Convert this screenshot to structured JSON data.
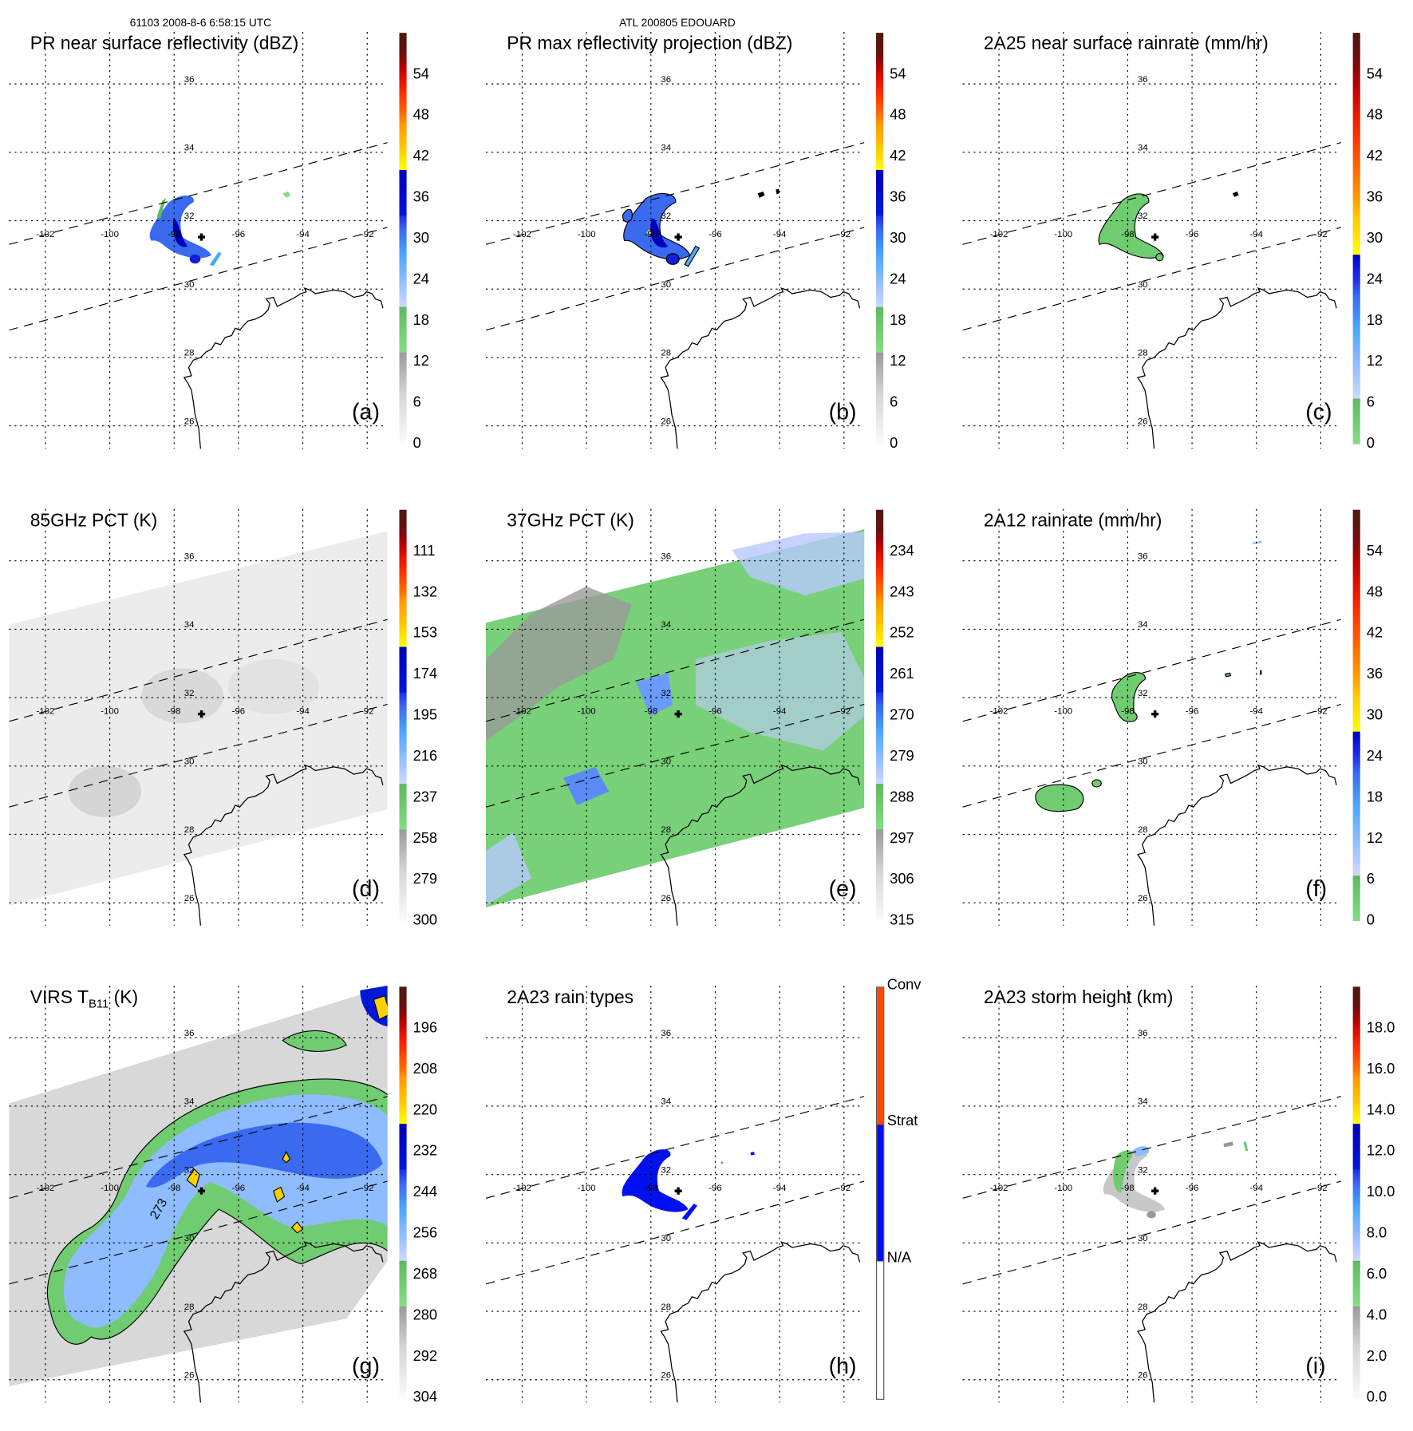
{
  "header": {
    "orbit_time": "61103 2008-8-6 6:58:15 UTC",
    "storm": "ATL 200805 EDOUARD"
  },
  "grid": {
    "lat_labels": [
      "36",
      "34",
      "32",
      "30",
      "28",
      "26"
    ],
    "lon_labels": [
      "-102",
      "-100",
      "-98",
      "-96",
      "-94",
      "-92"
    ]
  },
  "panels": [
    {
      "id": "a",
      "title": "PR near surface reflectivity (dBZ)",
      "letter": "(a)",
      "colorbar": "std",
      "colorbar_labels": [
        "0",
        "6",
        "12",
        "18",
        "24",
        "30",
        "36",
        "42",
        "48",
        "54"
      ]
    },
    {
      "id": "b",
      "title": "PR max reflectivity projection (dBZ)",
      "letter": "(b)",
      "colorbar": "std",
      "colorbar_labels": [
        "0",
        "6",
        "12",
        "18",
        "24",
        "30",
        "36",
        "42",
        "48",
        "54"
      ]
    },
    {
      "id": "c",
      "title": "2A25 near surface rainrate (mm/hr)",
      "letter": "(c)",
      "colorbar": "rain",
      "colorbar_labels": [
        "0",
        "6",
        "12",
        "18",
        "24",
        "30",
        "36",
        "42",
        "48",
        "54"
      ]
    },
    {
      "id": "d",
      "title": "85GHz PCT (K)",
      "letter": "(d)",
      "colorbar": "std",
      "colorbar_labels": [
        "300",
        "279",
        "258",
        "237",
        "216",
        "195",
        "174",
        "153",
        "132",
        "111"
      ]
    },
    {
      "id": "e",
      "title": "37GHz PCT (K)",
      "letter": "(e)",
      "colorbar": "std",
      "colorbar_labels": [
        "315",
        "306",
        "297",
        "288",
        "279",
        "270",
        "261",
        "252",
        "243",
        "234"
      ]
    },
    {
      "id": "f",
      "title": "2A12 rainrate (mm/hr)",
      "letter": "(f)",
      "colorbar": "rain",
      "colorbar_labels": [
        "0",
        "6",
        "12",
        "18",
        "24",
        "30",
        "36",
        "42",
        "48",
        "54"
      ]
    },
    {
      "id": "g",
      "title": "VIRS T",
      "title_sub": "B11",
      "title_suffix": " (K)",
      "letter": "(g)",
      "colorbar": "std",
      "colorbar_labels": [
        "304",
        "292",
        "280",
        "268",
        "256",
        "244",
        "232",
        "220",
        "208",
        "196"
      ],
      "contour_label": "273"
    },
    {
      "id": "h",
      "title": "2A23 rain types",
      "letter": "(h)",
      "colorbar": "types",
      "colorbar_labels": [
        "N/A",
        "Strat",
        "Conv"
      ]
    },
    {
      "id": "i",
      "title": "2A23 storm height (km)",
      "letter": "(i)",
      "colorbar": "std",
      "colorbar_labels": [
        "0.0",
        "2.0",
        "4.0",
        "6.0",
        "8.0",
        "10.0",
        "12.0",
        "14.0",
        "16.0",
        "18.0"
      ]
    }
  ],
  "colors": {
    "strat": "#0010f0",
    "conv": "#ff4800",
    "na": "#ffffff"
  }
}
